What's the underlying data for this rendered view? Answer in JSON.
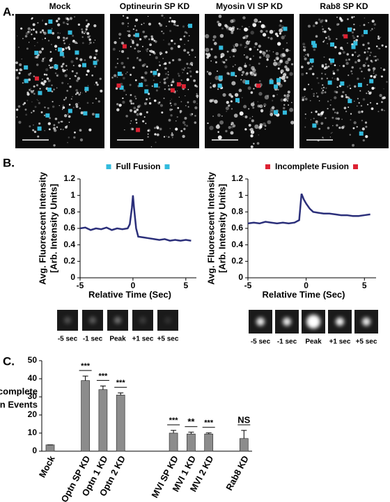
{
  "panel_labels": [
    "A.",
    "B.",
    "C."
  ],
  "images": [
    {
      "title": "Mock"
    },
    {
      "title": "Optineurin SP KD"
    },
    {
      "title": "Myosin VI SP KD"
    },
    {
      "title": "Rab8 SP KD"
    }
  ],
  "thumbnails": [
    {
      "labels": [
        "-5 sec",
        "-1 sec",
        "Peak",
        "+1 sec",
        "+5 sec"
      ]
    },
    {
      "labels": [
        "-5 sec",
        "-1 sec",
        "Peak",
        "+1 sec",
        "+5 sec"
      ]
    }
  ],
  "chart_data": [
    {
      "type": "line",
      "title": "Full Fusion",
      "marker_color": "#33bbdd",
      "color": "#2b2f7a",
      "xlabel": "Relative Time (Sec)",
      "ylabel": [
        "Avg. Fluorescent Intensity",
        "[Arb. Intensity Units]"
      ],
      "x": [
        -5,
        -4.5,
        -4,
        -3.5,
        -3,
        -2.5,
        -2,
        -1.5,
        -1,
        -0.5,
        -0.3,
        -0.1,
        0,
        0.1,
        0.3,
        0.5,
        1,
        1.5,
        2,
        2.5,
        3,
        3.5,
        4,
        4.5,
        5,
        5.5
      ],
      "values": [
        0.6,
        0.61,
        0.58,
        0.6,
        0.59,
        0.61,
        0.58,
        0.6,
        0.59,
        0.6,
        0.65,
        0.85,
        1.0,
        0.85,
        0.6,
        0.5,
        0.49,
        0.48,
        0.47,
        0.46,
        0.47,
        0.45,
        0.46,
        0.45,
        0.46,
        0.45
      ],
      "xlim": [
        -5,
        6
      ],
      "xticks": [
        -5,
        0,
        5
      ],
      "ylim": [
        0,
        1.2
      ],
      "yticks": [
        0,
        0.2,
        0.4,
        0.6,
        0.8,
        1,
        1.2
      ]
    },
    {
      "type": "line",
      "title": "Incomplete Fusion",
      "marker_color": "#dd2233",
      "color": "#2b2f7a",
      "xlabel": "Relative Time (Sec)",
      "ylabel": [
        "Avg. Fluorescent Intensity",
        "[Arb. Intensity Units]"
      ],
      "x": [
        -5,
        -4.5,
        -4,
        -3.5,
        -3,
        -2.5,
        -2,
        -1.5,
        -1,
        -0.6,
        -0.4,
        -0.2,
        0,
        0.3,
        0.6,
        1,
        1.5,
        2,
        2.5,
        3,
        3.5,
        4,
        4.5,
        5,
        5.5
      ],
      "values": [
        0.66,
        0.67,
        0.66,
        0.68,
        0.67,
        0.66,
        0.67,
        0.66,
        0.67,
        0.7,
        1.02,
        0.95,
        0.9,
        0.84,
        0.8,
        0.79,
        0.78,
        0.78,
        0.77,
        0.76,
        0.76,
        0.75,
        0.75,
        0.76,
        0.77
      ],
      "xlim": [
        -5,
        6
      ],
      "xticks": [
        -5,
        0,
        5
      ],
      "ylim": [
        0,
        1.2
      ],
      "yticks": [
        0,
        0.2,
        0.4,
        0.6,
        0.8,
        1,
        1.2
      ]
    },
    {
      "type": "bar",
      "color": "#8c8c8c",
      "ylabel": [
        "Avg. [%] of Incomplete",
        "Fusion Events"
      ],
      "categories": [
        "Mock",
        "Optn SP KD",
        "Optn 1 KD",
        "Optn 2 KD",
        "MVI SP KD",
        "MVI 1 KD",
        "MVI 2 KD",
        "Rab8 KD"
      ],
      "values": [
        3.5,
        39,
        34,
        31,
        10,
        9.5,
        9.5,
        7
      ],
      "errors": [
        0,
        2.5,
        2,
        1.2,
        1.5,
        1,
        0.6,
        4.5
      ],
      "annotations": [
        null,
        "***",
        "***",
        "***",
        "***",
        "**",
        "***",
        "NS"
      ],
      "ylim": [
        0,
        50
      ],
      "yticks": [
        0,
        10,
        20,
        30,
        40,
        50
      ]
    }
  ]
}
